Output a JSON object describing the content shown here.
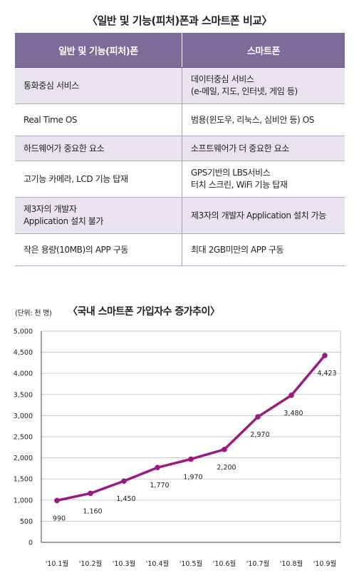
{
  "table": {
    "title": "〈일반 및 기능(피처)폰과 스마트폰 비교〉",
    "headers": [
      "일반 및 기능(피처)폰",
      "스마트폰"
    ],
    "rows": [
      [
        "통화중심 서비스",
        "데이터중심 서비스\n(e-메일, 지도, 인터넷, 게임 등)"
      ],
      [
        "Real Time OS",
        "범용(윈도우, 리눅스, 심비안 등) OS"
      ],
      [
        "하드웨어가 중요한 요소",
        "소프트웨어가 더 중요한 요소"
      ],
      [
        "고기능 카메라, LCD 기능 탑재",
        "GPS기반의 LBS서비스\n터치 스크린, WiFi 기능 탑재"
      ],
      [
        "제3자의 개발자\nApplication 설치 불가",
        "제3자의 개발자 Application 설치 가능"
      ],
      [
        "작은 용량(10MB)의 APP 구동",
        "최대 2GB미만의 APP 구동"
      ]
    ]
  },
  "chart_data": {
    "type": "line",
    "title": "〈국내 스마트폰 가입자수 증가추이〉",
    "unit_label": "(단위: 천 명)",
    "categories": [
      "'10.1월",
      "'10.2월",
      "'10.3월",
      "'10.4월",
      "'10.5월",
      "'10.6월",
      "'10.7월",
      "'10.8월",
      "'10.9월"
    ],
    "series": [
      {
        "values": [
          990,
          1160,
          1450,
          1770,
          1970,
          2200,
          2970,
          3480,
          4423
        ]
      }
    ],
    "data_labels": [
      "990",
      "1,160",
      "1,450",
      "1,770",
      "1,970",
      "2,200",
      "2,970",
      "3,480",
      "4,423"
    ],
    "yticks": [
      0,
      500,
      1000,
      1500,
      2000,
      2500,
      3000,
      3500,
      4000,
      4500,
      5000
    ],
    "ytick_labels": [
      "0",
      "500",
      "1,000",
      "1,500",
      "2,000",
      "2,500",
      "3,000",
      "3,500",
      "4,000",
      "4,500",
      "5,000"
    ],
    "ylim": [
      0,
      5000
    ],
    "grid": true,
    "legend": "none",
    "line_color": "#9c1a7e"
  }
}
